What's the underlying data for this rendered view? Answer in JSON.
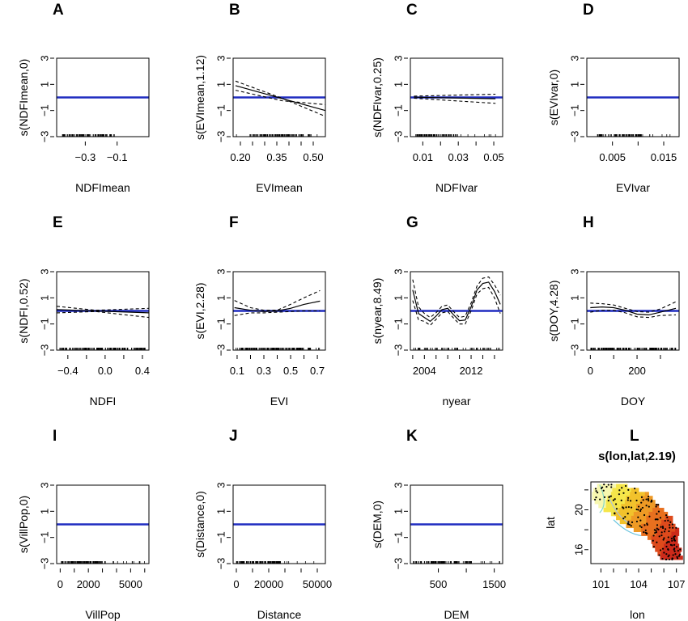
{
  "chart_data": [
    {
      "type": "line",
      "letter": "A",
      "title": "",
      "xlabel": "NDFImean",
      "ylabel": "s(NDFImean,0)",
      "xlim": [
        -0.48,
        0.1
      ],
      "ylim": [
        -3,
        3
      ],
      "xticks": [
        -0.3,
        -0.1
      ],
      "xtick_labels": [
        "−0.3",
        "−0.1"
      ],
      "yticks": [
        -3,
        -1,
        1,
        3
      ],
      "ytick_labels": [
        "−3",
        "−1",
        "1",
        "3"
      ],
      "series": [
        {
          "role": "zero",
          "x": [
            -0.48,
            0.1
          ],
          "y": [
            0,
            0
          ]
        }
      ],
      "rug": {
        "from": -0.45,
        "to": -0.1,
        "dense": [
          -0.45,
          -0.13
        ],
        "n": 90
      }
    },
    {
      "type": "line",
      "letter": "B",
      "title": "",
      "xlabel": "EVImean",
      "ylabel": "s(EVImean,1.12)",
      "xlim": [
        0.17,
        0.55
      ],
      "ylim": [
        -3,
        3
      ],
      "xticks": [
        0.2,
        0.35,
        0.5
      ],
      "xtick_labels": [
        "0.20",
        "0.35",
        "0.50"
      ],
      "minor_xticks": [
        0.25,
        0.3,
        0.4,
        0.45
      ],
      "yticks": [
        -3,
        -1,
        1,
        3
      ],
      "ytick_labels": [
        "−3",
        "−1",
        "1",
        "3"
      ],
      "series": [
        {
          "role": "zero",
          "x": [
            0.17,
            0.55
          ],
          "y": [
            0,
            0
          ]
        },
        {
          "role": "fit",
          "x": [
            0.18,
            0.55
          ],
          "y": [
            0.9,
            -1.0
          ]
        },
        {
          "role": "ci",
          "x": [
            0.18,
            0.37,
            0.55
          ],
          "y": [
            1.25,
            -0.05,
            -1.45
          ]
        },
        {
          "role": "ci",
          "x": [
            0.18,
            0.37,
            0.55
          ],
          "y": [
            0.55,
            -0.25,
            -0.55
          ]
        }
      ],
      "rug": {
        "from": 0.18,
        "to": 0.54,
        "dense": [
          0.24,
          0.5
        ],
        "n": 110
      }
    },
    {
      "type": "line",
      "letter": "C",
      "title": "",
      "xlabel": "NDFIvar",
      "ylabel": "s(NDFIvar,0.25)",
      "xlim": [
        0.003,
        0.055
      ],
      "ylim": [
        -3,
        3
      ],
      "xticks": [
        0.01,
        0.03,
        0.05
      ],
      "xtick_labels": [
        "0.01",
        "0.03",
        "0.05"
      ],
      "minor_xticks": [
        0.02,
        0.04
      ],
      "yticks": [
        -3,
        -1,
        1,
        3
      ],
      "ytick_labels": [
        "−3",
        "−1",
        "1",
        "3"
      ],
      "series": [
        {
          "role": "zero",
          "x": [
            0.003,
            0.055
          ],
          "y": [
            0,
            0
          ]
        },
        {
          "role": "fit",
          "x": [
            0.005,
            0.051
          ],
          "y": [
            0.02,
            -0.1
          ]
        },
        {
          "role": "ci",
          "x": [
            0.005,
            0.051
          ],
          "y": [
            0.1,
            0.25
          ]
        },
        {
          "role": "ci",
          "x": [
            0.005,
            0.051
          ],
          "y": [
            -0.06,
            -0.45
          ]
        }
      ],
      "rug": {
        "from": 0.005,
        "to": 0.052,
        "dense": [
          0.006,
          0.03
        ],
        "n": 90
      }
    },
    {
      "type": "line",
      "letter": "D",
      "title": "",
      "xlabel": "EVIvar",
      "ylabel": "s(EVIvar,0)",
      "xlim": [
        0.0,
        0.018
      ],
      "ylim": [
        -3,
        3
      ],
      "xticks": [
        0.005,
        0.015
      ],
      "xtick_labels": [
        "0.005",
        "0.015"
      ],
      "minor_xticks": [
        0.01
      ],
      "yticks": [
        -3,
        -1,
        1,
        3
      ],
      "ytick_labels": [
        "−3",
        "−1",
        "1",
        "3"
      ],
      "series": [
        {
          "role": "zero",
          "x": [
            0.0,
            0.018
          ],
          "y": [
            0,
            0
          ]
        }
      ],
      "rug": {
        "from": 0.001,
        "to": 0.017,
        "dense": [
          0.002,
          0.011
        ],
        "n": 90
      }
    },
    {
      "type": "line",
      "letter": "E",
      "title": "",
      "xlabel": "NDFI",
      "ylabel": "s(NDFI,0.52)",
      "xlim": [
        -0.52,
        0.47
      ],
      "ylim": [
        -3,
        3
      ],
      "xticks": [
        -0.4,
        0.0,
        0.4
      ],
      "xtick_labels": [
        "−0.4",
        "0.0",
        "0.4"
      ],
      "minor_xticks": [
        -0.2,
        0.2
      ],
      "yticks": [
        -3,
        -1,
        1,
        3
      ],
      "ytick_labels": [
        "−3",
        "−1",
        "1",
        "3"
      ],
      "series": [
        {
          "role": "zero",
          "x": [
            -0.52,
            0.47
          ],
          "y": [
            0,
            0
          ]
        },
        {
          "role": "fit",
          "x": [
            -0.52,
            0.47
          ],
          "y": [
            0.1,
            -0.15
          ]
        },
        {
          "role": "ci",
          "x": [
            -0.52,
            -0.1,
            0.47
          ],
          "y": [
            0.35,
            0.05,
            0.2
          ]
        },
        {
          "role": "ci",
          "x": [
            -0.52,
            -0.1,
            0.47
          ],
          "y": [
            -0.15,
            -0.05,
            -0.5
          ]
        }
      ],
      "rug": {
        "from": -0.5,
        "to": 0.45,
        "dense": [
          -0.5,
          0.45
        ],
        "n": 170
      }
    },
    {
      "type": "line",
      "letter": "F",
      "title": "",
      "xlabel": "EVI",
      "ylabel": "s(EVI,2.28)",
      "xlim": [
        0.07,
        0.76
      ],
      "ylim": [
        -3,
        3
      ],
      "xticks": [
        0.1,
        0.3,
        0.5,
        0.7
      ],
      "xtick_labels": [
        "0.1",
        "0.3",
        "0.5",
        "0.7"
      ],
      "minor_xticks": [
        0.2,
        0.4,
        0.6
      ],
      "yticks": [
        -3,
        -1,
        1,
        3
      ],
      "ytick_labels": [
        "−3",
        "−1",
        "1",
        "3"
      ],
      "series": [
        {
          "role": "zero",
          "x": [
            0.07,
            0.76
          ],
          "y": [
            0,
            0
          ]
        },
        {
          "role": "fit",
          "x": [
            0.08,
            0.2,
            0.3,
            0.4,
            0.5,
            0.6,
            0.72
          ],
          "y": [
            0.25,
            0.05,
            -0.05,
            0.0,
            0.2,
            0.5,
            0.75
          ]
        },
        {
          "role": "ci",
          "x": [
            0.08,
            0.2,
            0.3,
            0.4,
            0.5,
            0.6,
            0.72
          ],
          "y": [
            0.8,
            0.25,
            0.05,
            0.05,
            0.5,
            1.0,
            1.55
          ]
        },
        {
          "role": "ci",
          "x": [
            0.08,
            0.2,
            0.3,
            0.4,
            0.5,
            0.6,
            0.72
          ],
          "y": [
            -0.35,
            -0.15,
            -0.15,
            -0.1,
            -0.05,
            0.0,
            0.0
          ]
        }
      ],
      "rug": {
        "from": 0.08,
        "to": 0.74,
        "dense": [
          0.1,
          0.6
        ],
        "n": 150
      }
    },
    {
      "type": "line",
      "letter": "G",
      "title": "",
      "xlabel": "nyear",
      "ylabel": "s(nyear,8.49)",
      "xlim": [
        2001.6,
        2017.4
      ],
      "ylim": [
        -3,
        3
      ],
      "xticks": [
        2004,
        2012
      ],
      "xtick_labels": [
        "2004",
        "2012"
      ],
      "minor_xticks": [
        2002,
        2006,
        2008,
        2010,
        2014,
        2016
      ],
      "yticks": [
        -3,
        -1,
        1,
        3
      ],
      "ytick_labels": [
        "−3",
        "−1",
        "1",
        "3"
      ],
      "series": [
        {
          "role": "zero",
          "x": [
            2001.6,
            2017.4
          ],
          "y": [
            0,
            0
          ]
        },
        {
          "role": "fit",
          "x": [
            2002,
            2003,
            2004,
            2005,
            2006,
            2007,
            2008,
            2009,
            2010,
            2011,
            2012,
            2013,
            2014,
            2015,
            2016,
            2016.5,
            2017
          ],
          "y": [
            1.6,
            -0.2,
            -0.5,
            -0.8,
            -0.4,
            0.1,
            0.2,
            -0.3,
            -0.75,
            -0.7,
            0.3,
            1.6,
            2.1,
            2.2,
            1.5,
            1.0,
            0.5
          ]
        },
        {
          "role": "ci",
          "x": [
            2002,
            2003,
            2004,
            2005,
            2006,
            2007,
            2008,
            2009,
            2010,
            2011,
            2012,
            2013,
            2014,
            2015,
            2016,
            2016.5,
            2017
          ],
          "y": [
            2.4,
            0.3,
            -0.2,
            -0.5,
            -0.15,
            0.35,
            0.45,
            -0.05,
            -0.5,
            -0.4,
            0.6,
            1.9,
            2.5,
            2.6,
            2.0,
            1.6,
            1.2
          ]
        },
        {
          "role": "ci",
          "x": [
            2002,
            2003,
            2004,
            2005,
            2006,
            2007,
            2008,
            2009,
            2010,
            2011,
            2012,
            2013,
            2014,
            2015,
            2016,
            2016.5,
            2017
          ],
          "y": [
            0.8,
            -0.7,
            -0.8,
            -1.1,
            -0.65,
            -0.15,
            -0.05,
            -0.55,
            -1.0,
            -1.0,
            0.0,
            1.3,
            1.7,
            1.8,
            1.0,
            0.4,
            -0.2
          ]
        }
      ],
      "rug": {
        "from": 2002,
        "to": 2017,
        "dense": [
          2002,
          2017
        ],
        "n": 60
      }
    },
    {
      "type": "line",
      "letter": "H",
      "title": "",
      "xlabel": "DOY",
      "ylabel": "s(DOY,4.28)",
      "xlim": [
        -15,
        380
      ],
      "ylim": [
        -3,
        3
      ],
      "xticks": [
        0,
        200
      ],
      "xtick_labels": [
        "0",
        "200"
      ],
      "minor_xticks": [
        100,
        300
      ],
      "yticks": [
        -3,
        -1,
        1,
        3
      ],
      "ytick_labels": [
        "−3",
        "−1",
        "1",
        "3"
      ],
      "series": [
        {
          "role": "zero",
          "x": [
            -15,
            380
          ],
          "y": [
            0,
            0
          ]
        },
        {
          "role": "fit",
          "x": [
            0,
            50,
            100,
            150,
            200,
            250,
            300,
            366
          ],
          "y": [
            0.25,
            0.3,
            0.25,
            0.05,
            -0.25,
            -0.3,
            -0.1,
            0.2
          ]
        },
        {
          "role": "ci",
          "x": [
            0,
            50,
            100,
            150,
            200,
            250,
            300,
            366
          ],
          "y": [
            0.6,
            0.55,
            0.45,
            0.2,
            -0.05,
            -0.1,
            0.15,
            0.7
          ]
        },
        {
          "role": "ci",
          "x": [
            0,
            50,
            100,
            150,
            200,
            250,
            300,
            366
          ],
          "y": [
            -0.1,
            0.05,
            0.05,
            -0.15,
            -0.45,
            -0.5,
            -0.35,
            -0.3
          ]
        }
      ],
      "rug": {
        "from": 0,
        "to": 366,
        "dense": [
          0,
          366
        ],
        "n": 160
      }
    },
    {
      "type": "line",
      "letter": "I",
      "title": "",
      "xlabel": "VillPop",
      "ylabel": "s(VillPop,0)",
      "xlim": [
        -250,
        6300
      ],
      "ylim": [
        -3,
        3
      ],
      "xticks": [
        0,
        2000,
        5000
      ],
      "xtick_labels": [
        "0",
        "2000",
        "5000"
      ],
      "minor_xticks": [
        1000,
        3000,
        4000,
        6000
      ],
      "yticks": [
        -3,
        -1,
        1,
        3
      ],
      "ytick_labels": [
        "−3",
        "−1",
        "1",
        "3"
      ],
      "series": [
        {
          "role": "zero",
          "x": [
            -250,
            6300
          ],
          "y": [
            0,
            0
          ]
        }
      ],
      "rug": {
        "from": 0,
        "to": 6100,
        "dense": [
          0,
          3000
        ],
        "n": 130
      }
    },
    {
      "type": "line",
      "letter": "J",
      "title": "",
      "xlabel": "Distance",
      "ylabel": "s(Distance,0)",
      "xlim": [
        -2000,
        55000
      ],
      "ylim": [
        -3,
        3
      ],
      "xticks": [
        0,
        20000,
        50000
      ],
      "xtick_labels": [
        "0",
        "20000",
        "50000"
      ],
      "minor_xticks": [
        10000,
        30000,
        40000
      ],
      "yticks": [
        -3,
        -1,
        1,
        3
      ],
      "ytick_labels": [
        "−3",
        "−1",
        "1",
        "3"
      ],
      "series": [
        {
          "role": "zero",
          "x": [
            -2000,
            55000
          ],
          "y": [
            0,
            0
          ]
        }
      ],
      "rug": {
        "from": 0,
        "to": 52000,
        "dense": [
          0,
          28000
        ],
        "n": 120
      }
    },
    {
      "type": "line",
      "letter": "K",
      "title": "",
      "xlabel": "DEM",
      "ylabel": "s(DEM,0)",
      "xlim": [
        0,
        1650
      ],
      "ylim": [
        -3,
        3
      ],
      "xticks": [
        500,
        1500
      ],
      "xtick_labels": [
        "500",
        "1500"
      ],
      "minor_xticks": [
        1000
      ],
      "yticks": [
        -3,
        -1,
        1,
        3
      ],
      "ytick_labels": [
        "−3",
        "−1",
        "1",
        "3"
      ],
      "series": [
        {
          "role": "zero",
          "x": [
            0,
            1650
          ],
          "y": [
            0,
            0
          ]
        }
      ],
      "rug": {
        "from": 50,
        "to": 1600,
        "dense": [
          50,
          1100
        ],
        "n": 120
      }
    },
    {
      "type": "heatmap",
      "letter": "L",
      "title": "s(lon,lat,2.19)",
      "xlabel": "lon",
      "ylabel": "lat",
      "xlim": [
        100.2,
        107.6
      ],
      "ylim": [
        14.6,
        22.8
      ],
      "xticks": [
        101,
        104,
        107
      ],
      "xtick_labels": [
        "101",
        "104",
        "107"
      ],
      "minor_xticks": [
        102,
        103,
        105,
        106
      ],
      "yticks": [
        16,
        20
      ],
      "ytick_labels": [
        "16",
        "20"
      ],
      "minor_yticks": [
        18,
        22
      ],
      "palette": [
        "#f7f7b0",
        "#f5e64a",
        "#f2c22c",
        "#ee9a25",
        "#e8701f",
        "#de4a1c",
        "#cc2a1a"
      ],
      "contours": [
        "#7fd6c8",
        "#a9c0e6",
        "#63c1dc"
      ],
      "region_rows": [
        {
          "lat": 22.4,
          "lon": [
            100.7,
            103.0
          ]
        },
        {
          "lat": 22.0,
          "lon": [
            100.4,
            104.0
          ]
        },
        {
          "lat": 21.6,
          "lon": [
            100.3,
            104.6
          ]
        },
        {
          "lat": 21.2,
          "lon": [
            100.3,
            105.0
          ]
        },
        {
          "lat": 20.8,
          "lon": [
            100.5,
            105.2
          ]
        },
        {
          "lat": 20.4,
          "lon": [
            100.8,
            105.6
          ]
        },
        {
          "lat": 20.0,
          "lon": [
            101.2,
            106.0
          ]
        },
        {
          "lat": 19.6,
          "lon": [
            101.8,
            106.2
          ]
        },
        {
          "lat": 19.2,
          "lon": [
            102.2,
            106.5
          ]
        },
        {
          "lat": 18.8,
          "lon": [
            102.5,
            106.6
          ]
        },
        {
          "lat": 18.4,
          "lon": [
            103.0,
            106.8
          ]
        },
        {
          "lat": 18.0,
          "lon": [
            103.6,
            107.0
          ]
        },
        {
          "lat": 17.6,
          "lon": [
            104.2,
            107.0
          ]
        },
        {
          "lat": 17.2,
          "lon": [
            104.7,
            107.0
          ]
        },
        {
          "lat": 16.8,
          "lon": [
            105.0,
            107.0
          ]
        },
        {
          "lat": 16.4,
          "lon": [
            105.1,
            107.2
          ]
        },
        {
          "lat": 16.0,
          "lon": [
            105.3,
            107.3
          ]
        },
        {
          "lat": 15.6,
          "lon": [
            105.5,
            107.3
          ]
        },
        {
          "lat": 15.2,
          "lon": [
            105.7,
            107.4
          ]
        }
      ],
      "n_points": 170
    }
  ]
}
